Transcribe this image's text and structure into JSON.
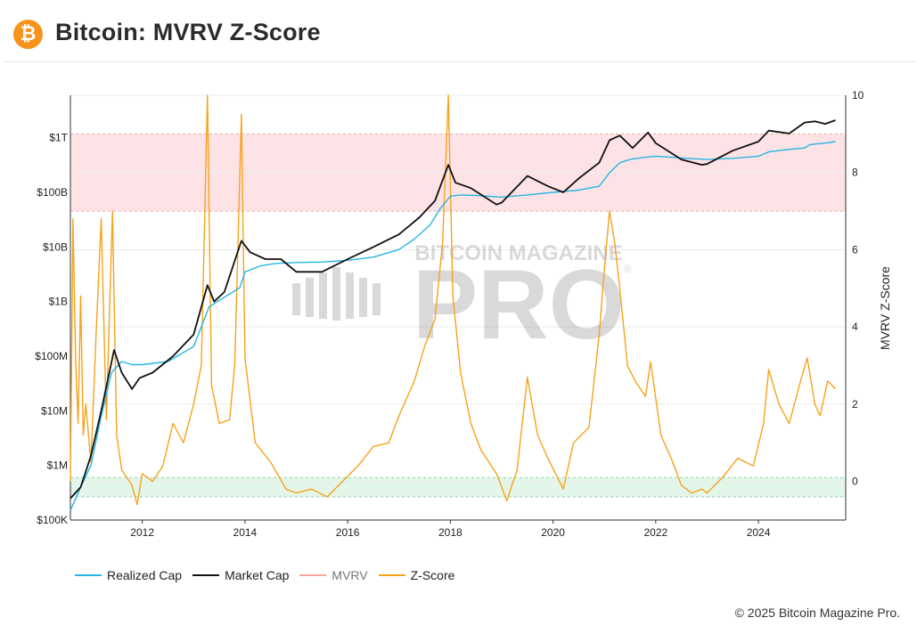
{
  "header": {
    "logo_glyph": "₿",
    "logo_icon": "bitcoin-logo-icon",
    "title": "Bitcoin: MVRV Z-Score"
  },
  "footer": {
    "copyright": "© 2025 Bitcoin Magazine Pro."
  },
  "watermark": {
    "line1": "BITCOIN MAGAZINE",
    "line2": "PRO",
    "mark": "®"
  },
  "colors": {
    "realized_cap": "#26b6e3",
    "market_cap": "#111111",
    "mvrv": "#f4a79a",
    "zscore": "#f7a21b",
    "high_band": "#fde3e6",
    "low_band": "#e3f6ea"
  },
  "legend": [
    {
      "label": "Realized Cap",
      "color": "#26b6e3",
      "muted": false
    },
    {
      "label": "Market Cap",
      "color": "#111111",
      "muted": false
    },
    {
      "label": "MVRV",
      "color": "#f4a79a",
      "muted": true
    },
    {
      "label": "Z-Score",
      "color": "#f7a21b",
      "muted": false
    }
  ],
  "chart_data": {
    "type": "line",
    "title": "Bitcoin: MVRV Z-Score",
    "x_range": [
      2010.6,
      2025.7
    ],
    "x_ticks": [
      "2012",
      "2014",
      "2016",
      "2018",
      "2020",
      "2022",
      "2024"
    ],
    "x_tick_values": [
      2012,
      2014,
      2016,
      2018,
      2020,
      2022,
      2024
    ],
    "y_left": {
      "scale": "log",
      "range": [
        100000,
        6000000000000
      ],
      "tick_labels": [
        "$100K",
        "$1M",
        "$10M",
        "$100M",
        "$1B",
        "$10B",
        "$100B",
        "$1T"
      ],
      "tick_values": [
        100000.0,
        1000000.0,
        10000000.0,
        100000000.0,
        1000000000.0,
        10000000000.0,
        100000000000.0,
        1000000000000.0
      ]
    },
    "y_right": {
      "label": "MVRV Z-Score",
      "range": [
        -1,
        10
      ],
      "tick_labels": [
        "0",
        "2",
        "4",
        "6",
        "8",
        "10"
      ],
      "tick_values": [
        0,
        2,
        4,
        6,
        8,
        10
      ]
    },
    "bands": [
      {
        "axis": "right",
        "from": 7,
        "to": 9
      },
      {
        "axis": "right",
        "from": -0.4,
        "to": 0.1
      }
    ],
    "grid": true,
    "legend_position": "bottom-left",
    "series": [
      {
        "name": "Realized Cap",
        "axis": "left",
        "x": [
          2010.6,
          2010.8,
          2011.0,
          2011.2,
          2011.4,
          2011.6,
          2011.8,
          2012.0,
          2012.5,
          2013.0,
          2013.3,
          2013.6,
          2013.9,
          2014.0,
          2014.3,
          2014.6,
          2015.0,
          2015.5,
          2016.0,
          2016.5,
          2017.0,
          2017.3,
          2017.6,
          2017.8,
          2018.0,
          2018.2,
          2018.5,
          2019.0,
          2019.5,
          2020.0,
          2020.5,
          2020.9,
          2021.1,
          2021.3,
          2021.5,
          2021.8,
          2022.0,
          2022.3,
          2022.6,
          2023.0,
          2023.5,
          2024.0,
          2024.2,
          2024.5,
          2024.9,
          2025.0,
          2025.3,
          2025.5
        ],
        "values": [
          150000,
          400000,
          1000000,
          8000000,
          50000000,
          80000000,
          70000000,
          70000000,
          80000000,
          150000000,
          800000000,
          1200000000,
          1800000000,
          3500000000,
          4500000000,
          5000000000,
          5200000000,
          5300000000,
          5700000000,
          6500000000,
          9000000000,
          14000000000,
          25000000000,
          50000000000,
          85000000000,
          90000000000,
          88000000000,
          82000000000,
          90000000000,
          100000000000,
          110000000000,
          130000000000,
          230000000000,
          350000000000,
          400000000000,
          440000000000,
          460000000000,
          440000000000,
          420000000000,
          400000000000,
          420000000000,
          460000000000,
          550000000000,
          600000000000,
          650000000000,
          750000000000,
          800000000000,
          850000000000
        ]
      },
      {
        "name": "Market Cap",
        "axis": "left",
        "x": [
          2010.6,
          2010.8,
          2011.0,
          2011.2,
          2011.45,
          2011.6,
          2011.8,
          2011.95,
          2012.2,
          2012.6,
          2013.0,
          2013.27,
          2013.4,
          2013.6,
          2013.93,
          2014.1,
          2014.4,
          2014.7,
          2015.0,
          2015.5,
          2016.0,
          2016.5,
          2017.0,
          2017.4,
          2017.7,
          2017.96,
          2018.1,
          2018.4,
          2018.9,
          2019.0,
          2019.5,
          2019.9,
          2020.2,
          2020.5,
          2020.9,
          2021.1,
          2021.3,
          2021.55,
          2021.85,
          2022.0,
          2022.5,
          2022.9,
          2023.0,
          2023.5,
          2024.0,
          2024.2,
          2024.6,
          2024.9,
          2025.1,
          2025.3,
          2025.5
        ],
        "values": [
          250000,
          400000,
          1500000,
          10000000,
          130000000,
          50000000,
          25000000,
          40000000,
          50000000,
          100000000,
          250000000,
          2000000000,
          1000000000,
          1500000000,
          13000000000,
          8000000000,
          6000000000,
          6000000000,
          3500000000,
          3500000000,
          6000000000,
          10000000000,
          17000000000,
          35000000000,
          70000000000,
          320000000000,
          150000000000,
          120000000000,
          60000000000,
          65000000000,
          200000000000,
          130000000000,
          100000000000,
          180000000000,
          350000000000,
          900000000000,
          1100000000000,
          650000000000,
          1250000000000,
          800000000000,
          400000000000,
          320000000000,
          330000000000,
          580000000000,
          850000000000,
          1350000000000,
          1200000000000,
          1900000000000,
          2000000000000,
          1800000000000,
          2100000000000
        ]
      },
      {
        "name": "Z-Score",
        "axis": "right",
        "x": [
          2010.6,
          2010.65,
          2010.7,
          2010.75,
          2010.8,
          2010.85,
          2010.9,
          2011.0,
          2011.1,
          2011.2,
          2011.3,
          2011.42,
          2011.5,
          2011.6,
          2011.8,
          2011.9,
          2012.0,
          2012.2,
          2012.4,
          2012.6,
          2012.8,
          2013.0,
          2013.15,
          2013.27,
          2013.35,
          2013.5,
          2013.7,
          2013.8,
          2013.93,
          2014.0,
          2014.2,
          2014.5,
          2014.8,
          2015.0,
          2015.3,
          2015.6,
          2015.9,
          2016.2,
          2016.5,
          2016.8,
          2017.0,
          2017.3,
          2017.5,
          2017.7,
          2017.85,
          2017.96,
          2018.05,
          2018.2,
          2018.4,
          2018.6,
          2018.9,
          2019.1,
          2019.3,
          2019.5,
          2019.7,
          2019.9,
          2020.2,
          2020.4,
          2020.7,
          2020.9,
          2021.0,
          2021.1,
          2021.2,
          2021.3,
          2021.45,
          2021.6,
          2021.8,
          2021.9,
          2022.1,
          2022.3,
          2022.5,
          2022.7,
          2022.9,
          2023.0,
          2023.3,
          2023.6,
          2023.9,
          2024.1,
          2024.2,
          2024.4,
          2024.6,
          2024.8,
          2024.95,
          2025.1,
          2025.2,
          2025.35,
          2025.5
        ],
        "values": [
          0.0,
          6.8,
          3.2,
          1.5,
          4.8,
          1.2,
          2.0,
          0.5,
          3.8,
          6.8,
          1.6,
          7.0,
          1.2,
          0.3,
          -0.1,
          -0.6,
          0.2,
          0.0,
          0.4,
          1.5,
          1.0,
          2.0,
          3.0,
          10.0,
          2.5,
          1.5,
          1.6,
          3.0,
          9.5,
          3.2,
          1.0,
          0.5,
          -0.2,
          -0.3,
          -0.2,
          -0.4,
          0.0,
          0.4,
          0.9,
          1.0,
          1.7,
          2.6,
          3.5,
          4.2,
          6.2,
          10.0,
          4.8,
          2.8,
          1.5,
          0.8,
          0.2,
          -0.5,
          0.3,
          2.7,
          1.2,
          0.6,
          -0.2,
          1.0,
          1.4,
          3.8,
          5.5,
          7.0,
          6.2,
          5.0,
          3.0,
          2.6,
          2.2,
          3.1,
          1.2,
          0.6,
          -0.1,
          -0.3,
          -0.2,
          -0.3,
          0.1,
          0.6,
          0.4,
          1.5,
          2.9,
          2.0,
          1.5,
          2.5,
          3.2,
          2.0,
          1.7,
          2.6,
          2.4
        ]
      }
    ]
  }
}
